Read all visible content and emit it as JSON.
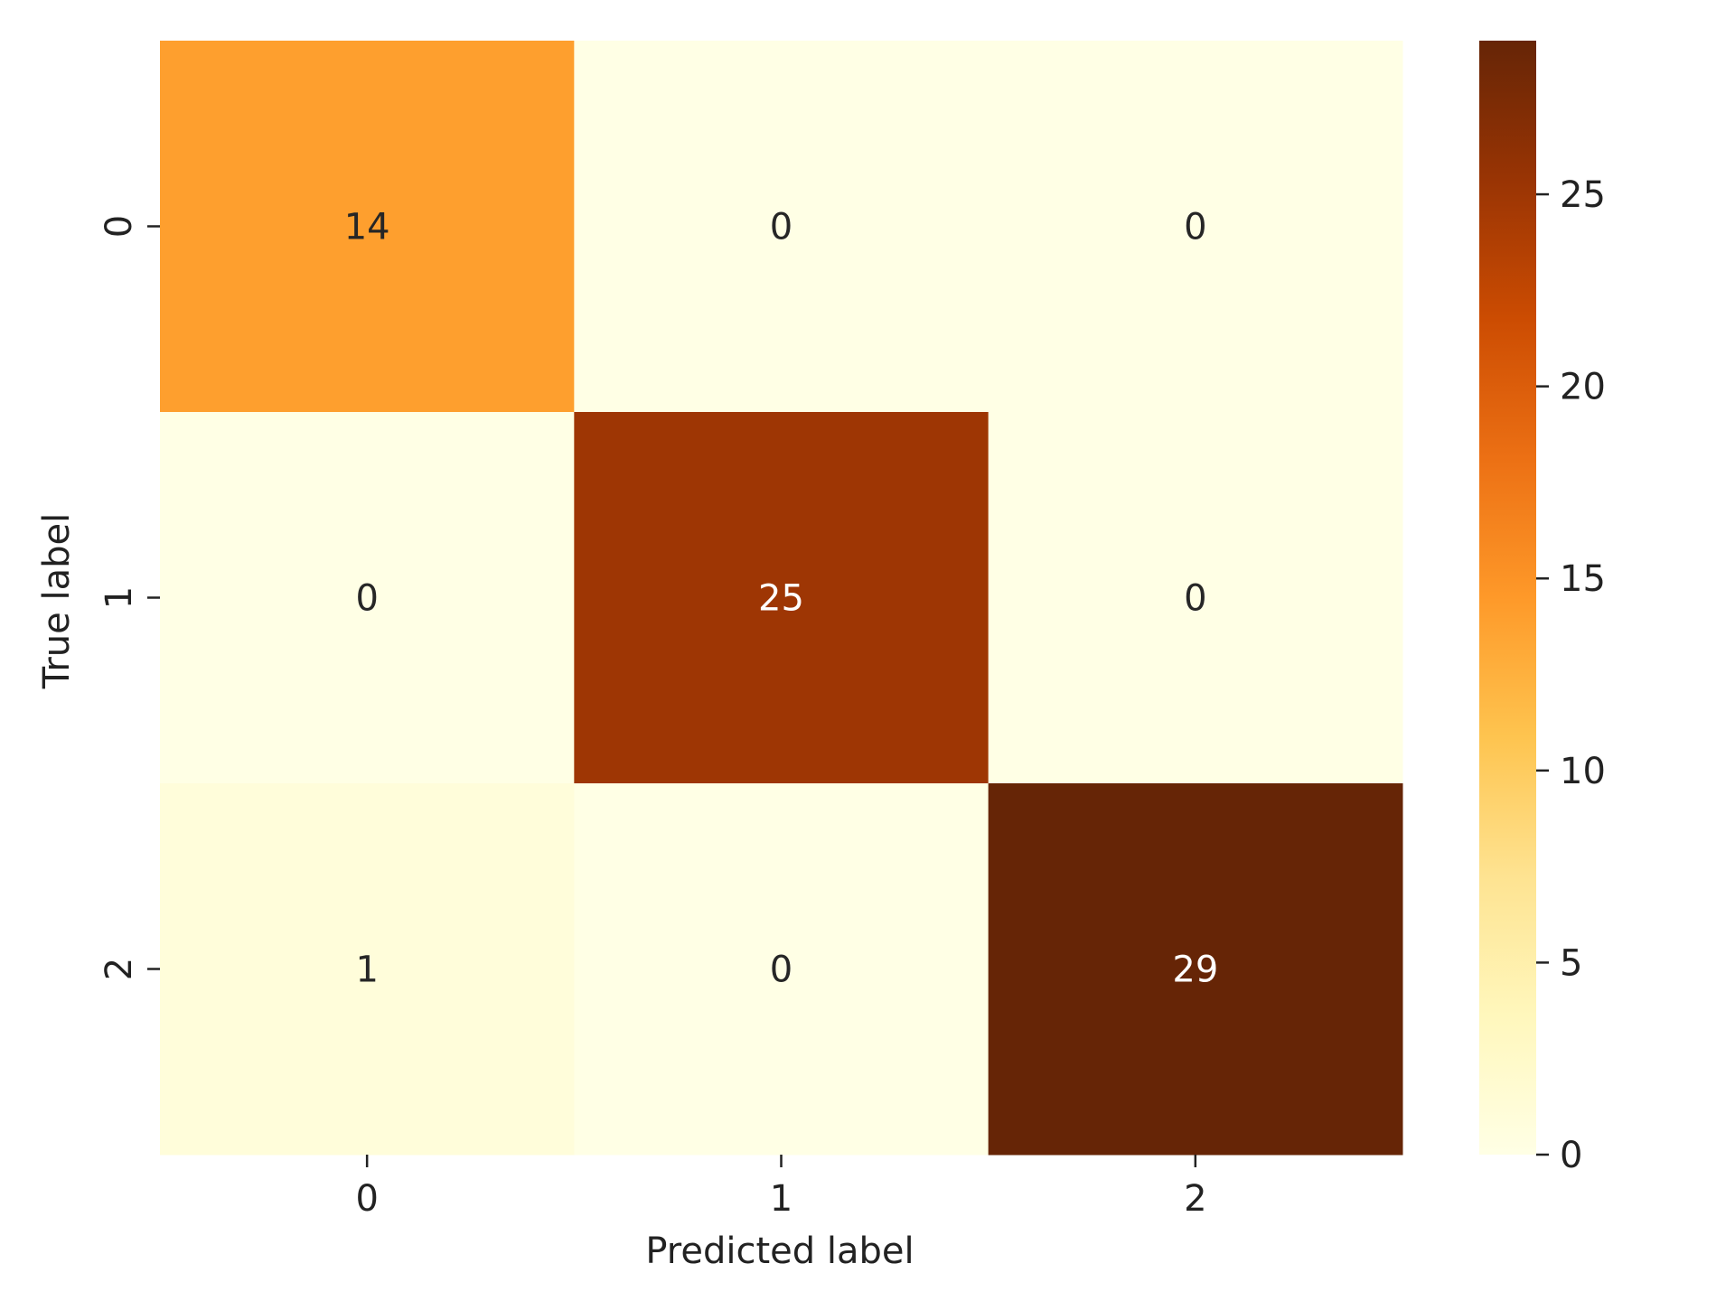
{
  "chart_data": {
    "type": "heatmap",
    "title": "",
    "xlabel": "Predicted label",
    "ylabel": "True label",
    "x_categories": [
      "0",
      "1",
      "2"
    ],
    "y_categories": [
      "0",
      "1",
      "2"
    ],
    "matrix": [
      [
        14,
        0,
        0
      ],
      [
        0,
        25,
        0
      ],
      [
        1,
        0,
        29
      ]
    ],
    "colormap": "YlOrBr",
    "color_range": [
      0,
      29
    ],
    "colorbar_ticks": [
      0,
      5,
      10,
      15,
      20,
      25
    ],
    "colorbar_tick_labels": [
      "0",
      "5",
      "10",
      "15",
      "20",
      "25"
    ],
    "annotation_colors": {
      "dark_text": "#262626",
      "light_text": "#ffffff"
    },
    "grid": false,
    "legend": "colorbar-right"
  }
}
